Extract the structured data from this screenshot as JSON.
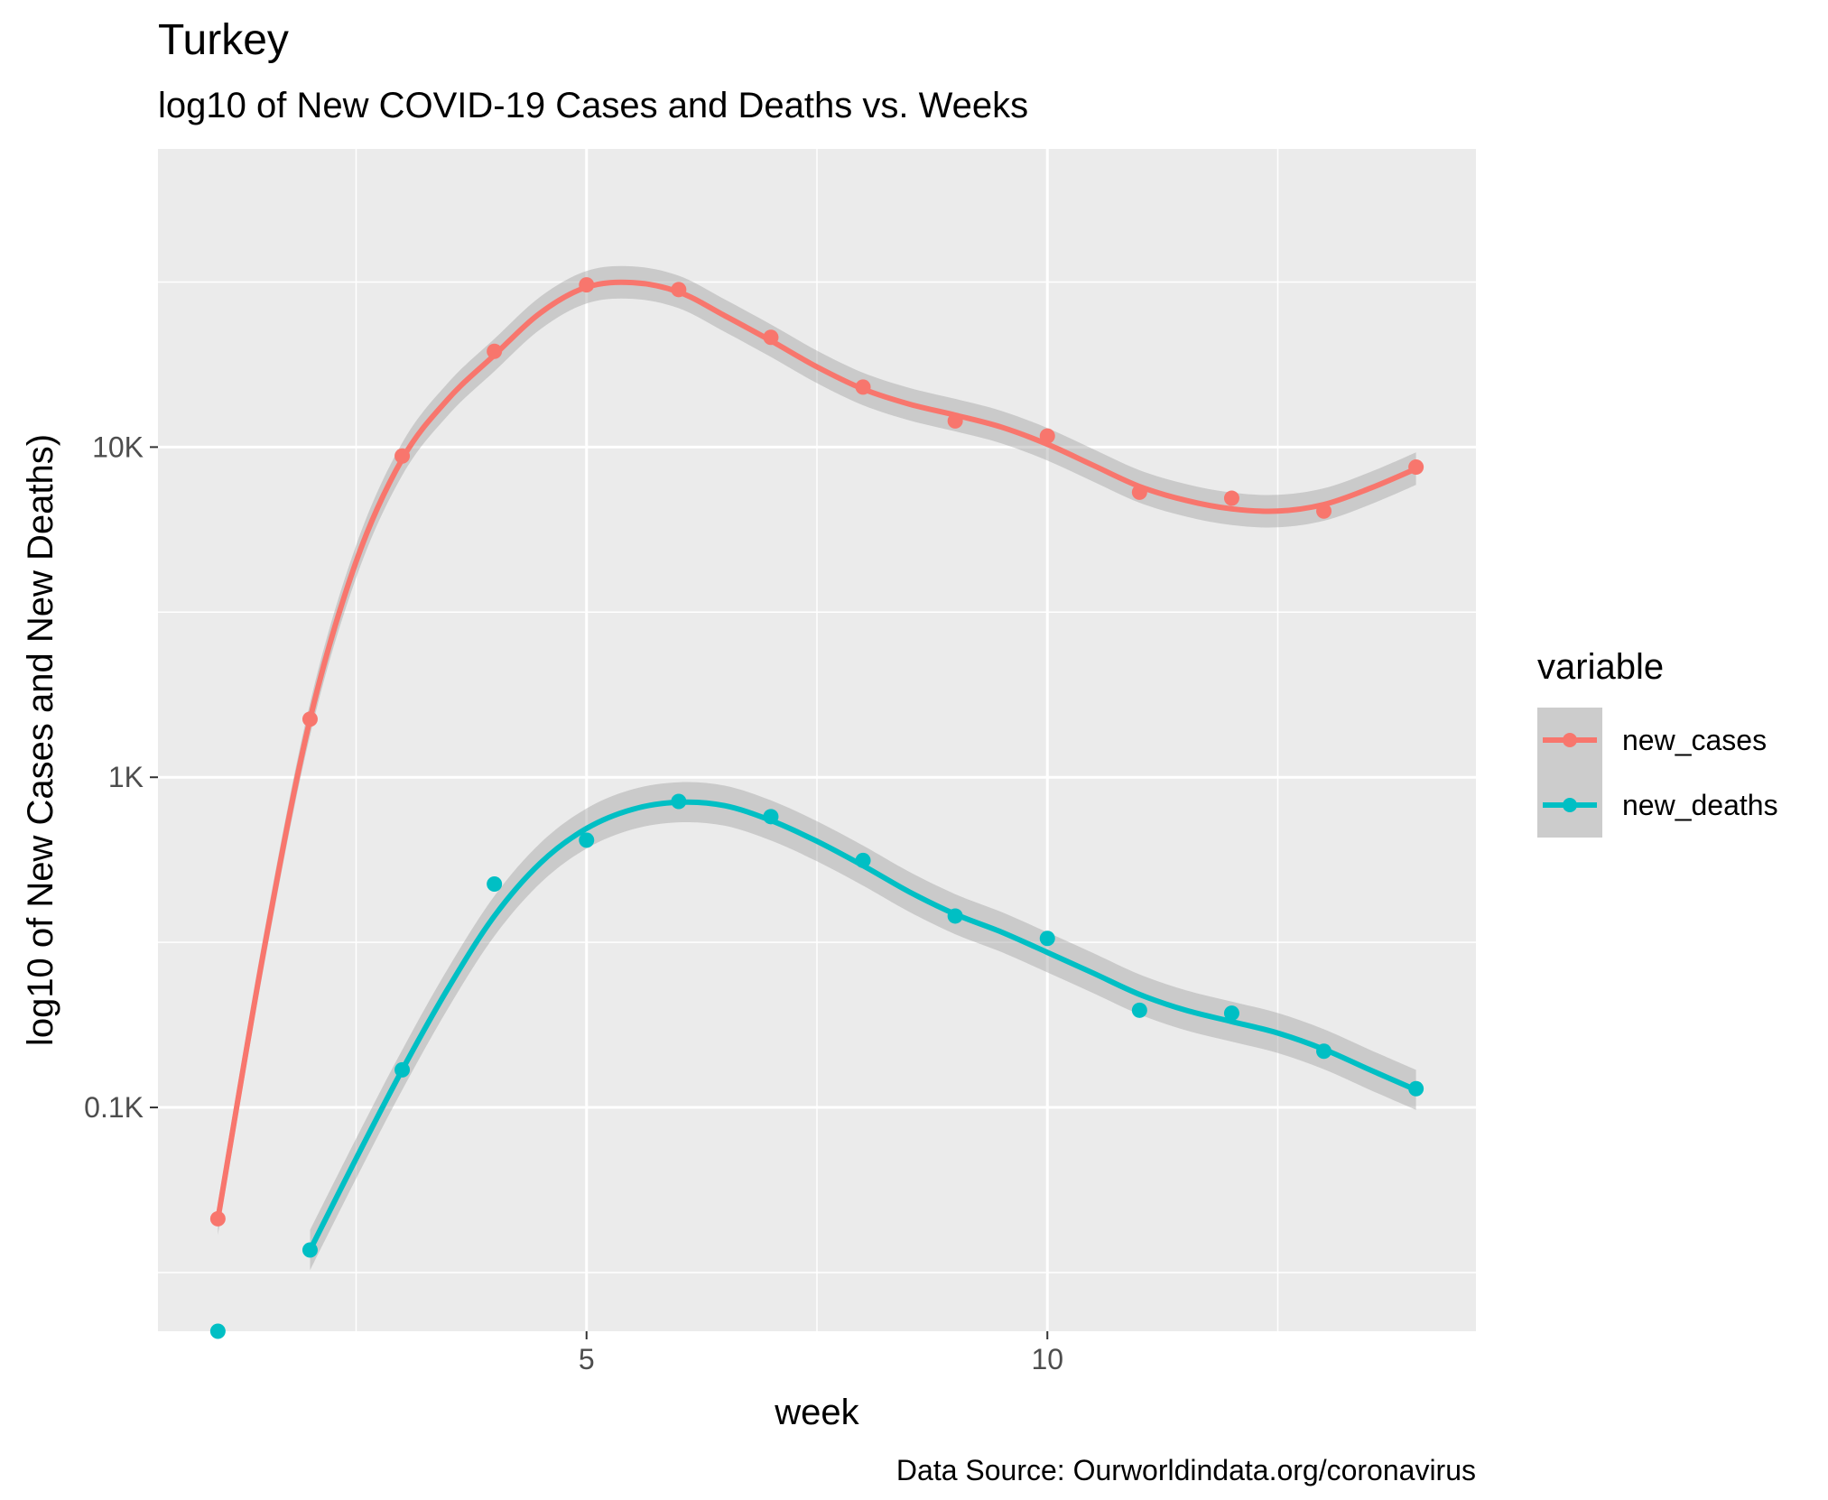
{
  "chart_data": {
    "type": "line",
    "title": "Turkey",
    "subtitle": "log10 of New COVID-19 Cases and Deaths vs. Weeks",
    "xlabel": "week",
    "ylabel": "log10 of New Cases and New Deaths)",
    "caption": "Data Source: Ourworldindata.org/coronavirus",
    "y_scale": "log10",
    "xlim": [
      0.35,
      14.65
    ],
    "ylim": [
      21,
      80000
    ],
    "x_ticks": [
      5,
      10
    ],
    "x_tick_labels": [
      "5",
      "10"
    ],
    "y_ticks": [
      100,
      1000,
      10000
    ],
    "y_tick_labels": [
      "0.1K",
      "1K",
      "10K"
    ],
    "grid": true,
    "legend": {
      "title": "variable",
      "position": "right",
      "entries": [
        "new_cases",
        "new_deaths"
      ]
    },
    "series": [
      {
        "name": "new_cases",
        "color": "#F8766D",
        "points": [
          {
            "x": 1,
            "y": 46
          },
          {
            "x": 2,
            "y": 1500
          },
          {
            "x": 3,
            "y": 9400
          },
          {
            "x": 4,
            "y": 19500
          },
          {
            "x": 5,
            "y": 31000
          },
          {
            "x": 6,
            "y": 30000
          },
          {
            "x": 7,
            "y": 21500
          },
          {
            "x": 8,
            "y": 15200
          },
          {
            "x": 9,
            "y": 12000
          },
          {
            "x": 10,
            "y": 10800
          },
          {
            "x": 11,
            "y": 7300
          },
          {
            "x": 12,
            "y": 7000
          },
          {
            "x": 13,
            "y": 6400
          },
          {
            "x": 14,
            "y": 8700
          }
        ],
        "smooth": [
          {
            "x": 1,
            "y": 46
          },
          {
            "x": 1.5,
            "y": 300
          },
          {
            "x": 2,
            "y": 1500
          },
          {
            "x": 2.5,
            "y": 4500
          },
          {
            "x": 3,
            "y": 9200
          },
          {
            "x": 3.5,
            "y": 14000
          },
          {
            "x": 4,
            "y": 19000
          },
          {
            "x": 4.5,
            "y": 25500
          },
          {
            "x": 5,
            "y": 30500
          },
          {
            "x": 5.5,
            "y": 31500
          },
          {
            "x": 6,
            "y": 29500
          },
          {
            "x": 6.5,
            "y": 25000
          },
          {
            "x": 7,
            "y": 21000
          },
          {
            "x": 7.5,
            "y": 17500
          },
          {
            "x": 8,
            "y": 15000
          },
          {
            "x": 8.5,
            "y": 13500
          },
          {
            "x": 9,
            "y": 12500
          },
          {
            "x": 9.5,
            "y": 11500
          },
          {
            "x": 10,
            "y": 10200
          },
          {
            "x": 10.5,
            "y": 8800
          },
          {
            "x": 11,
            "y": 7600
          },
          {
            "x": 11.5,
            "y": 6900
          },
          {
            "x": 12,
            "y": 6500
          },
          {
            "x": 12.5,
            "y": 6400
          },
          {
            "x": 13,
            "y": 6700
          },
          {
            "x": 13.5,
            "y": 7500
          },
          {
            "x": 14,
            "y": 8600
          }
        ],
        "band_factor": 1.12
      },
      {
        "name": "new_deaths",
        "color": "#00BFC4",
        "points": [
          {
            "x": 1,
            "y": 21
          },
          {
            "x": 2,
            "y": 37
          },
          {
            "x": 3,
            "y": 130
          },
          {
            "x": 4,
            "y": 475
          },
          {
            "x": 5,
            "y": 645
          },
          {
            "x": 6,
            "y": 845
          },
          {
            "x": 7,
            "y": 760
          },
          {
            "x": 8,
            "y": 560
          },
          {
            "x": 9,
            "y": 380
          },
          {
            "x": 10,
            "y": 325
          },
          {
            "x": 11,
            "y": 197
          },
          {
            "x": 12,
            "y": 193
          },
          {
            "x": 13,
            "y": 148
          },
          {
            "x": 14,
            "y": 114
          }
        ],
        "smooth": [
          {
            "x": 2,
            "y": 37
          },
          {
            "x": 2.5,
            "y": 70
          },
          {
            "x": 3,
            "y": 130
          },
          {
            "x": 3.5,
            "y": 230
          },
          {
            "x": 4,
            "y": 380
          },
          {
            "x": 4.5,
            "y": 550
          },
          {
            "x": 5,
            "y": 700
          },
          {
            "x": 5.5,
            "y": 800
          },
          {
            "x": 6,
            "y": 840
          },
          {
            "x": 6.5,
            "y": 820
          },
          {
            "x": 7,
            "y": 740
          },
          {
            "x": 7.5,
            "y": 640
          },
          {
            "x": 8,
            "y": 540
          },
          {
            "x": 8.5,
            "y": 450
          },
          {
            "x": 9,
            "y": 385
          },
          {
            "x": 9.5,
            "y": 340
          },
          {
            "x": 10,
            "y": 295
          },
          {
            "x": 10.5,
            "y": 255
          },
          {
            "x": 11,
            "y": 220
          },
          {
            "x": 11.5,
            "y": 197
          },
          {
            "x": 12,
            "y": 182
          },
          {
            "x": 12.5,
            "y": 168
          },
          {
            "x": 13,
            "y": 150
          },
          {
            "x": 13.5,
            "y": 130
          },
          {
            "x": 14,
            "y": 113
          }
        ],
        "band_factor": 1.15
      }
    ]
  }
}
